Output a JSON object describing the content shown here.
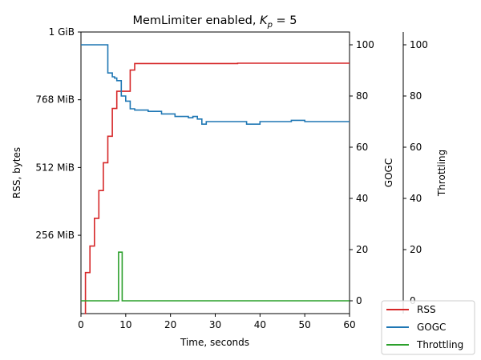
{
  "chart_data": {
    "type": "line",
    "title": "MemLimiter enabled, ",
    "title_math": "K",
    "title_math_sub": "p",
    "title_math_tail": " = 5",
    "xlabel": "Time, seconds",
    "ylabel_left": "RSS, bytes",
    "ylabel_right1": "GOGC",
    "ylabel_right2": "Throttling",
    "xlim": [
      0,
      60
    ],
    "xticks": [
      0,
      10,
      20,
      30,
      40,
      50,
      60
    ],
    "x_tick_labels": [
      "0",
      "10",
      "20",
      "30",
      "40",
      "50",
      "60"
    ],
    "left_axis": {
      "unit": "MiB",
      "ylim": [
        -40,
        1024
      ],
      "ticks": [
        256,
        512,
        768,
        1024
      ],
      "tick_labels": [
        "256 MiB",
        "512 MiB",
        "768 MiB",
        "1 GiB"
      ]
    },
    "right_axis": {
      "ylim": [
        -5,
        105
      ],
      "ticks": [
        0,
        20,
        40,
        60,
        80,
        100
      ],
      "tick_labels": [
        "0",
        "20",
        "40",
        "60",
        "80",
        "100"
      ]
    },
    "throttling_axis": {
      "ylim": [
        -5,
        105
      ],
      "ticks": [
        0,
        20,
        40,
        60,
        80,
        100
      ],
      "tick_labels": [
        "0",
        "20",
        "40",
        "60",
        "80",
        "100"
      ]
    },
    "series": [
      {
        "name": "RSS",
        "axis": "left",
        "color": "#d62728",
        "step": true,
        "x": [
          0.8,
          1.0,
          2.0,
          3.0,
          4.0,
          5.0,
          6.0,
          7.0,
          8.0,
          9.0,
          11.0,
          12.0,
          20.0,
          35.0,
          60.0
        ],
        "y": [
          -40,
          115,
          215,
          320,
          425,
          530,
          630,
          735,
          800,
          800,
          880,
          905,
          905,
          906,
          906
        ]
      },
      {
        "name": "GOGC",
        "axis": "right",
        "color": "#1f77b4",
        "step": true,
        "x": [
          0,
          5,
          6,
          7,
          7.5,
          8,
          9,
          10,
          11,
          12,
          15,
          18,
          21,
          24,
          25,
          26,
          27,
          28,
          32,
          37,
          40,
          44,
          47,
          50,
          60
        ],
        "y": [
          100,
          100,
          89,
          87.5,
          87,
          86,
          80,
          78,
          75,
          74.5,
          74,
          73,
          72,
          71.5,
          72,
          71,
          69,
          70,
          70,
          69,
          70,
          70,
          70.5,
          70,
          70
        ]
      },
      {
        "name": "Throttling",
        "axis": "throttle",
        "color": "#2ca02c",
        "step": true,
        "x": [
          0,
          8,
          8.4,
          9.0,
          9.2,
          60
        ],
        "y": [
          0,
          0,
          19,
          19,
          0,
          0
        ]
      }
    ],
    "legend": {
      "placement": "bottom-right",
      "entries": [
        "RSS",
        "GOGC",
        "Throttling"
      ]
    },
    "grid": false
  }
}
